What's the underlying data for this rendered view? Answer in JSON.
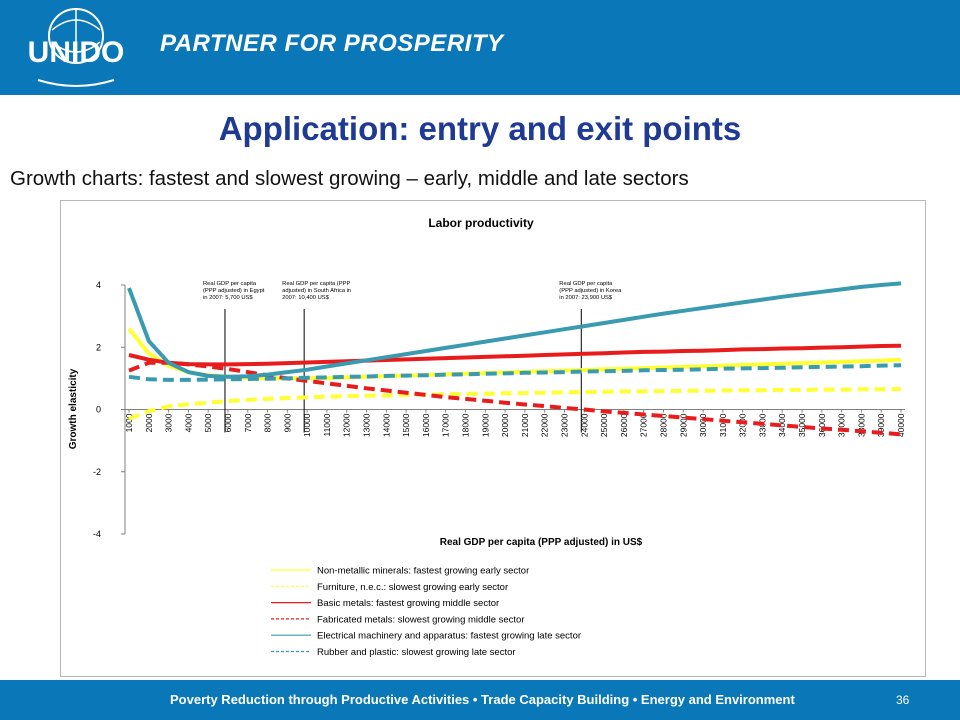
{
  "header": {
    "logo_text": "UNIDO",
    "tagline": "PARTNER FOR PROSPERITY"
  },
  "slide": {
    "title": "Application: entry and exit points",
    "subtitle": "Growth charts: fastest and slowest growing – early, middle and late sectors"
  },
  "footer": {
    "text": "Poverty Reduction through Productive Activities  •  Trade Capacity Building  •  Energy and Environment",
    "page": "36"
  },
  "colors": {
    "header": "#0a78b8",
    "title": "#1f3a93",
    "yellow": "#ffff33",
    "red": "#e81c1c",
    "teal": "#3a9bb0"
  },
  "chart_data": {
    "type": "line",
    "title": "Labor productivity",
    "xlabel": "Real GDP per capita (PPP adjusted) in US$",
    "ylabel": "Growth elasticity",
    "ylim": [
      -4,
      4
    ],
    "yticks": [
      -4,
      -2,
      0,
      2,
      4
    ],
    "grid": false,
    "legend": "bottom",
    "x": [
      "1000",
      "2000",
      "3000",
      "4000",
      "5000",
      "6000",
      "7000",
      "8000",
      "9000",
      "10000",
      "11000",
      "12000",
      "13000",
      "14000",
      "15000",
      "16000",
      "17000",
      "18000",
      "19000",
      "20000",
      "21000",
      "22000",
      "23000",
      "24000",
      "25000",
      "26000",
      "27000",
      "28000",
      "29000",
      "30000",
      "31000",
      "32000",
      "33000",
      "34000",
      "35000",
      "36000",
      "37000",
      "38000",
      "39000",
      "40000"
    ],
    "series": [
      {
        "name": "Non-metallic minerals: fastest growing early sector",
        "color": "#ffff33",
        "dash": false,
        "values": [
          2.6,
          1.8,
          1.4,
          1.2,
          1.1,
          1.05,
          1.02,
          1.0,
          1.0,
          1.0,
          1.01,
          1.03,
          1.05,
          1.07,
          1.09,
          1.11,
          1.13,
          1.15,
          1.17,
          1.19,
          1.21,
          1.23,
          1.25,
          1.27,
          1.29,
          1.31,
          1.33,
          1.35,
          1.37,
          1.39,
          1.41,
          1.43,
          1.45,
          1.47,
          1.49,
          1.51,
          1.53,
          1.55,
          1.57,
          1.6
        ]
      },
      {
        "name": "Furniture, n.e.c.: slowest growing early sector",
        "color": "#ffff33",
        "dash": true,
        "values": [
          -0.3,
          -0.05,
          0.1,
          0.17,
          0.22,
          0.27,
          0.31,
          0.34,
          0.37,
          0.39,
          0.41,
          0.43,
          0.44,
          0.45,
          0.47,
          0.48,
          0.49,
          0.5,
          0.51,
          0.52,
          0.53,
          0.54,
          0.55,
          0.56,
          0.57,
          0.58,
          0.58,
          0.59,
          0.6,
          0.6,
          0.61,
          0.62,
          0.62,
          0.63,
          0.63,
          0.64,
          0.64,
          0.65,
          0.65,
          0.66
        ]
      },
      {
        "name": "Basic metals: fastest growing middle sector",
        "color": "#e81c1c",
        "dash": false,
        "values": [
          1.75,
          1.6,
          1.5,
          1.46,
          1.45,
          1.45,
          1.46,
          1.47,
          1.49,
          1.51,
          1.53,
          1.55,
          1.57,
          1.59,
          1.61,
          1.63,
          1.65,
          1.67,
          1.69,
          1.71,
          1.73,
          1.75,
          1.77,
          1.79,
          1.81,
          1.83,
          1.85,
          1.86,
          1.88,
          1.89,
          1.91,
          1.93,
          1.94,
          1.96,
          1.97,
          1.99,
          2.0,
          2.02,
          2.04,
          2.05
        ]
      },
      {
        "name": "Fabricated metals: slowest growing middle sector",
        "color": "#e81c1c",
        "dash": true,
        "values": [
          1.25,
          1.5,
          1.5,
          1.45,
          1.38,
          1.3,
          1.2,
          1.1,
          1.0,
          0.92,
          0.84,
          0.76,
          0.68,
          0.61,
          0.54,
          0.47,
          0.4,
          0.34,
          0.28,
          0.22,
          0.16,
          0.11,
          0.05,
          0.0,
          -0.06,
          -0.11,
          -0.16,
          -0.21,
          -0.26,
          -0.31,
          -0.36,
          -0.41,
          -0.46,
          -0.51,
          -0.56,
          -0.61,
          -0.65,
          -0.7,
          -0.75,
          -0.8
        ]
      },
      {
        "name": "Electrical machinery and apparatus: fastest growing late sector",
        "color": "#3a9bb0",
        "dash": false,
        "values": [
          3.9,
          2.2,
          1.5,
          1.2,
          1.08,
          1.05,
          1.07,
          1.12,
          1.2,
          1.28,
          1.38,
          1.48,
          1.58,
          1.68,
          1.78,
          1.88,
          1.98,
          2.08,
          2.18,
          2.28,
          2.38,
          2.48,
          2.58,
          2.68,
          2.78,
          2.88,
          2.98,
          3.08,
          3.17,
          3.26,
          3.35,
          3.44,
          3.53,
          3.62,
          3.7,
          3.78,
          3.86,
          3.94,
          4.0,
          4.05
        ]
      },
      {
        "name": "Rubber and plastic: slowest growing late sector",
        "color": "#3a9bb0",
        "dash": true,
        "values": [
          1.05,
          0.97,
          0.95,
          0.95,
          0.96,
          0.97,
          0.98,
          0.99,
          1.0,
          1.02,
          1.03,
          1.05,
          1.06,
          1.08,
          1.09,
          1.1,
          1.12,
          1.13,
          1.15,
          1.16,
          1.18,
          1.19,
          1.2,
          1.22,
          1.23,
          1.24,
          1.26,
          1.27,
          1.28,
          1.29,
          1.31,
          1.32,
          1.33,
          1.34,
          1.36,
          1.37,
          1.38,
          1.39,
          1.41,
          1.42
        ]
      }
    ],
    "annotations": [
      {
        "x_index": 5,
        "text": [
          "Real  GDP  per  capita",
          "(PPP adjusted) in Egypt",
          "in 2007: 5,700 US$"
        ]
      },
      {
        "x_index": 9,
        "text": [
          "Real GDP per capita (PPP",
          "adjusted) in South Africa in",
          "2007: 10,400 US$"
        ]
      },
      {
        "x_index": 23,
        "text": [
          "Real  GDP  per  capita",
          "(PPP adjusted) in Korea",
          "in 2007: 23,900 US$"
        ]
      }
    ]
  }
}
